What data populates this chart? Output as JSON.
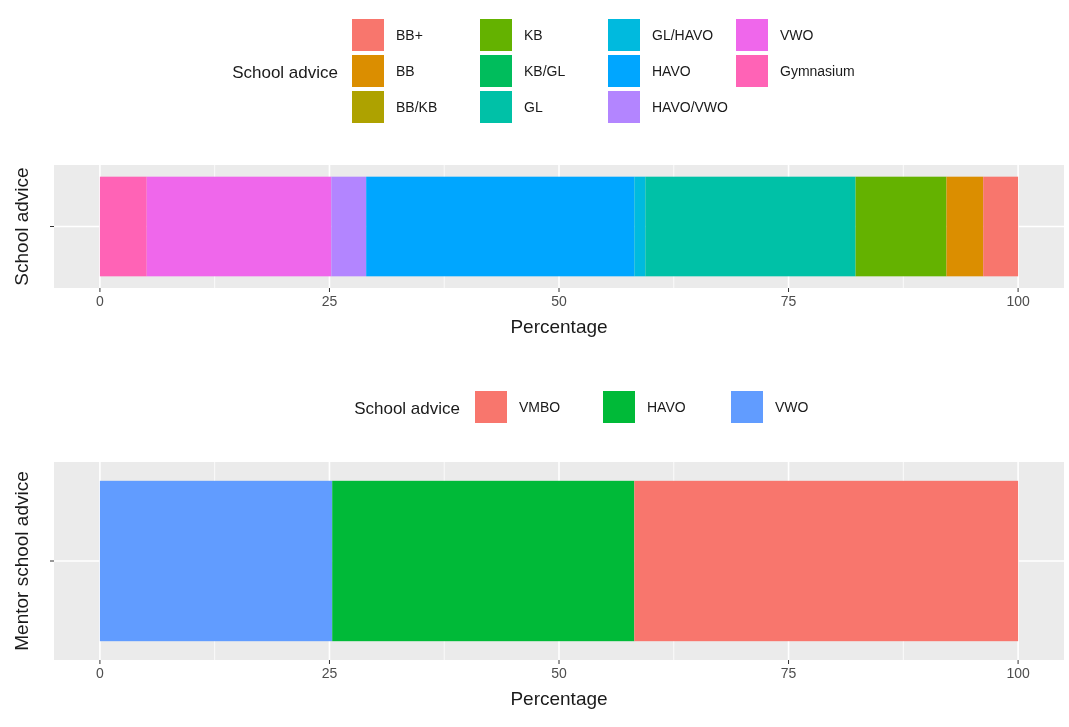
{
  "chart_data": [
    {
      "type": "bar",
      "orientation": "horizontal",
      "stacked": true,
      "categories": [
        null
      ],
      "ylabel": "School advice",
      "xlabel": "Percentage",
      "legend_title": "School advice",
      "legend": "top",
      "grid": true,
      "xlim": [
        -5,
        105
      ],
      "xticks": [
        0,
        25,
        50,
        75,
        100
      ],
      "series": [
        {
          "name": "Gymnasium",
          "color": "#ff63b6",
          "values": [
            5.1
          ]
        },
        {
          "name": "VWO",
          "color": "#ef67eb",
          "values": [
            20.1
          ]
        },
        {
          "name": "HAVO/VWO",
          "color": "#b385ff",
          "values": [
            3.8
          ]
        },
        {
          "name": "HAVO",
          "color": "#00a6ff",
          "values": [
            29.2
          ]
        },
        {
          "name": "GL/HAVO",
          "color": "#00bade",
          "values": [
            1.2
          ]
        },
        {
          "name": "GL",
          "color": "#00c1a7",
          "values": [
            22.9
          ]
        },
        {
          "name": "KB/GL",
          "color": "#00bd5c",
          "values": [
            0
          ]
        },
        {
          "name": "KB",
          "color": "#64b200",
          "values": [
            9.9
          ]
        },
        {
          "name": "BB/KB",
          "color": "#aea200",
          "values": [
            0
          ]
        },
        {
          "name": "BB",
          "color": "#db8e00",
          "values": [
            4.0
          ]
        },
        {
          "name": "BB+",
          "color": "#f8766d",
          "values": [
            3.8
          ]
        }
      ]
    },
    {
      "type": "bar",
      "orientation": "horizontal",
      "stacked": true,
      "categories": [
        null
      ],
      "ylabel": "Mentor school advice",
      "xlabel": "Percentage",
      "legend_title": "School advice",
      "legend": "top",
      "grid": true,
      "xlim": [
        -5,
        105
      ],
      "xticks": [
        0,
        25,
        50,
        75,
        100
      ],
      "series": [
        {
          "name": "VWO",
          "color": "#619cff",
          "values": [
            25.3
          ]
        },
        {
          "name": "HAVO",
          "color": "#00ba38",
          "values": [
            32.9
          ]
        },
        {
          "name": "VMBO",
          "color": "#f8766d",
          "values": [
            41.8
          ]
        }
      ]
    }
  ]
}
